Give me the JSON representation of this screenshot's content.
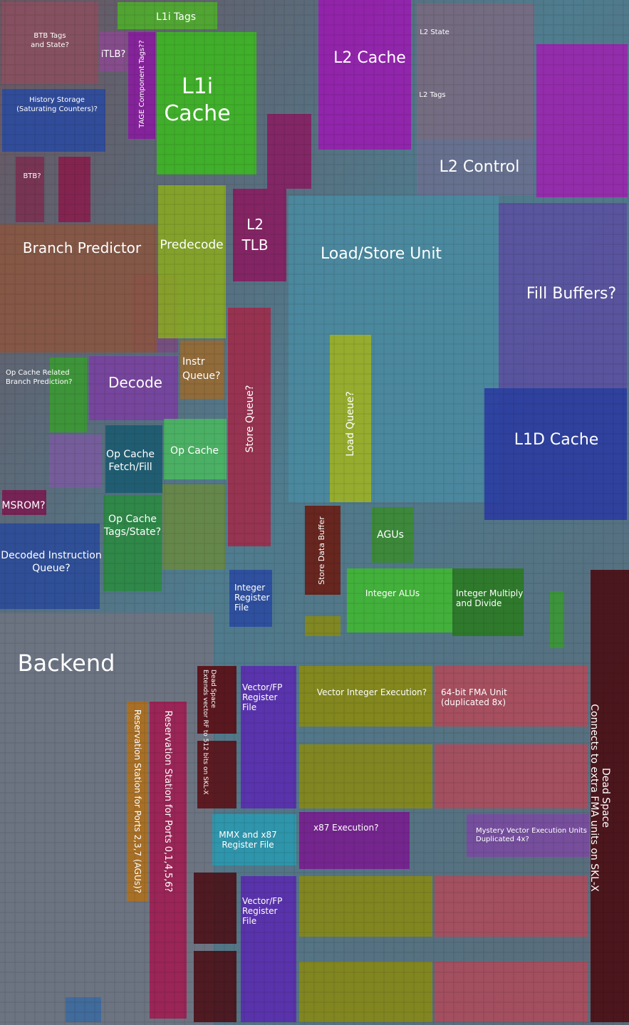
{
  "regions": [
    {
      "lines": [
        "L1i Tags"
      ]
    },
    {
      "lines": [
        "BTB Tags",
        "and State?"
      ]
    },
    {
      "lines": [
        "iTLB?"
      ]
    },
    {
      "lines": [
        "TAGE Component Tags??"
      ]
    },
    {
      "lines": [
        "L1i",
        "Cache"
      ]
    },
    {
      "lines": [
        "L2 Cache"
      ]
    },
    {
      "lines": [
        "L2 State"
      ]
    },
    {
      "lines": [
        "L2 Tags"
      ]
    },
    {
      "lines": [
        "L2 Control"
      ]
    },
    {
      "lines": [
        "History Storage",
        "(Saturating Counters)?"
      ]
    },
    {
      "lines": [
        "BTB?"
      ]
    },
    {
      "lines": [
        "Branch Predictor"
      ]
    },
    {
      "lines": [
        "Predecode"
      ]
    },
    {
      "lines": [
        "L2",
        "TLB"
      ]
    },
    {
      "lines": [
        "Load/Store Unit"
      ]
    },
    {
      "lines": [
        "Fill Buffers?"
      ]
    },
    {
      "lines": [
        "L1D Cache"
      ]
    },
    {
      "lines": [
        "Load Queue?"
      ]
    },
    {
      "lines": [
        "Store Queue?"
      ]
    },
    {
      "lines": [
        "Instr",
        "Queue?"
      ]
    },
    {
      "lines": [
        "Decode"
      ]
    },
    {
      "lines": [
        "Op Cache Related",
        "Branch Prediction?"
      ]
    },
    {
      "lines": [
        "Op Cache",
        "Fetch/Fill"
      ]
    },
    {
      "lines": [
        "Op Cache"
      ]
    },
    {
      "lines": [
        "Op Cache",
        "Tags/State?"
      ]
    },
    {
      "lines": [
        "MSROM?"
      ]
    },
    {
      "lines": [
        "Decoded Instruction",
        "Queue?"
      ]
    },
    {
      "lines": [
        "Store Data Buffer"
      ]
    },
    {
      "lines": [
        "AGUs"
      ]
    },
    {
      "lines": [
        "Integer",
        "Register",
        "File"
      ]
    },
    {
      "lines": [
        "Integer ALUs"
      ]
    },
    {
      "lines": [
        "Integer Multiply",
        "and Divide"
      ]
    },
    {
      "lines": [
        "Backend"
      ]
    },
    {
      "lines": [
        "Dead Space",
        "Connects to extra FMA units on SKL-X"
      ]
    },
    {
      "lines": [
        "Dead Space",
        "Extends vector RF to 512 bits on SKL-X"
      ]
    },
    {
      "lines": [
        "Vector/FP",
        "Register",
        "File"
      ]
    },
    {
      "lines": [
        "Vector Integer Execution?"
      ]
    },
    {
      "lines": [
        "64-bit FMA Unit",
        "(duplicated 8x)"
      ]
    },
    {
      "lines": [
        "MMX and x87",
        "Register File"
      ]
    },
    {
      "lines": [
        "x87 Execution?"
      ]
    },
    {
      "lines": [
        "Mystery Vector Execution Units",
        "Duplicated 4x?"
      ]
    },
    {
      "lines": [
        "Reservation Station for Ports 2,3,7 (AGUs)?"
      ]
    },
    {
      "lines": [
        "Reservation Station for Ports 0,1,4,5,6?"
      ]
    },
    {
      "lines": [
        "Vector/FP",
        "Register",
        "File"
      ]
    }
  ]
}
